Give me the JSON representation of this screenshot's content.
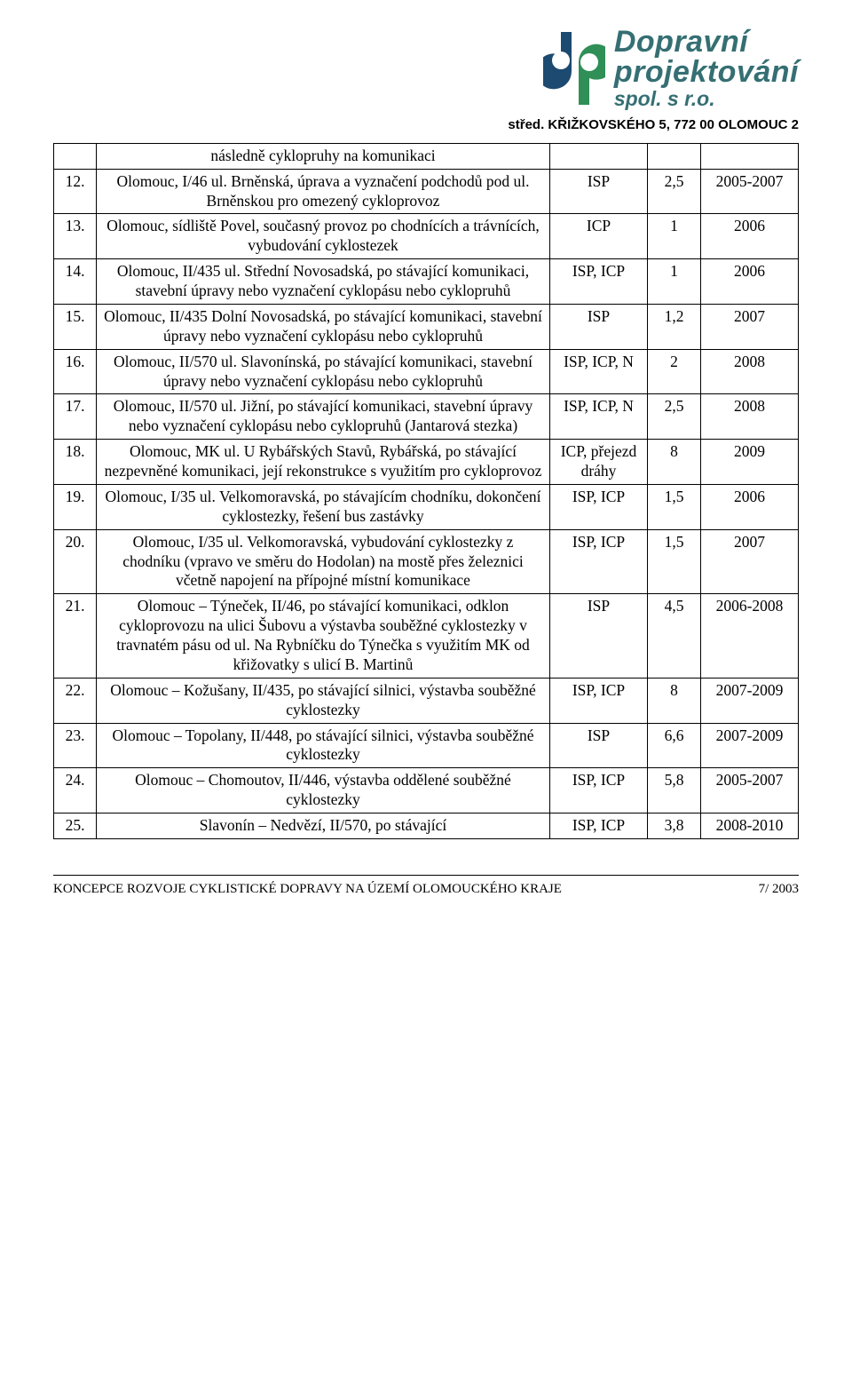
{
  "logo": {
    "line1": "Dopravní",
    "line2": "projektování",
    "line3": "spol. s r.o.",
    "colors": {
      "text": "#356f73",
      "d_fill": "#1d4a70",
      "p_fill": "#2f8f57"
    }
  },
  "address": "střed. KŘIŽKOVSKÉHO 5, 772 00 OLOMOUC 2",
  "table": {
    "rows": [
      {
        "num": "",
        "desc": "následně cyklopruhy na komunikaci",
        "c3": "",
        "c4": "",
        "c5": ""
      },
      {
        "num": "12.",
        "desc": "Olomouc, I/46 ul. Brněnská, úprava a vyznačení podchodů pod ul. Brněnskou pro omezený cykloprovoz",
        "c3": "ISP",
        "c4": "2,5",
        "c5": "2005-2007"
      },
      {
        "num": "13.",
        "desc": "Olomouc, sídliště Povel, současný provoz po chodnících a trávnících, vybudování cyklostezek",
        "c3": "ICP",
        "c4": "1",
        "c5": "2006"
      },
      {
        "num": "14.",
        "desc": "Olomouc, II/435 ul. Střední Novosadská, po stávající komunikaci, stavební úpravy nebo vyznačení cyklopásu nebo cyklopruhů",
        "c3": "ISP, ICP",
        "c4": "1",
        "c5": "2006"
      },
      {
        "num": "15.",
        "desc": "Olomouc, II/435 Dolní Novosadská, po stávající komunikaci, stavební úpravy nebo vyznačení cyklopásu nebo cyklopruhů",
        "c3": "ISP",
        "c4": "1,2",
        "c5": "2007"
      },
      {
        "num": "16.",
        "desc": "Olomouc, II/570 ul. Slavonínská, po stávající komunikaci, stavební úpravy nebo vyznačení cyklopásu nebo cyklopruhů",
        "c3": "ISP, ICP, N",
        "c4": "2",
        "c5": "2008"
      },
      {
        "num": "17.",
        "desc": "Olomouc, II/570 ul. Jižní, po stávající komunikaci, stavební úpravy nebo vyznačení cyklopásu nebo cyklopruhů (Jantarová stezka)",
        "c3": "ISP, ICP, N",
        "c4": "2,5",
        "c5": "2008"
      },
      {
        "num": "18.",
        "desc": "Olomouc, MK ul. U Rybářských Stavů, Rybářská, po stávající nezpevněné komunikaci, její rekonstrukce s využitím pro cykloprovoz",
        "c3": "ICP, přejezd dráhy",
        "c4": "8",
        "c5": "2009"
      },
      {
        "num": "19.",
        "desc": "Olomouc, I/35 ul. Velkomoravská, po stávajícím chodníku, dokončení cyklostezky, řešení bus zastávky",
        "c3": "ISP, ICP",
        "c4": "1,5",
        "c5": "2006"
      },
      {
        "num": "20.",
        "desc": "Olomouc, I/35 ul. Velkomoravská, vybudování cyklostezky z chodníku (vpravo ve směru do Hodolan) na mostě přes železnici včetně napojení na přípojné místní komunikace",
        "c3": "ISP, ICP",
        "c4": "1,5",
        "c5": "2007"
      },
      {
        "num": "21.",
        "desc": "Olomouc – Týneček, II/46, po stávající komunikaci, odklon cykloprovozu na ulici Šubovu a výstavba souběžné cyklostezky v travnatém pásu od ul. Na Rybníčku do Týnečka s využitím MK od křižovatky s ulicí B. Martinů",
        "c3": "ISP",
        "c4": "4,5",
        "c5": "2006-2008"
      },
      {
        "num": "22.",
        "desc": "Olomouc – Kožušany, II/435, po stávající silnici, výstavba souběžné cyklostezky",
        "c3": "ISP, ICP",
        "c4": "8",
        "c5": "2007-2009"
      },
      {
        "num": "23.",
        "desc": "Olomouc – Topolany, II/448, po stávající silnici, výstavba souběžné cyklostezky",
        "c3": "ISP",
        "c4": "6,6",
        "c5": "2007-2009"
      },
      {
        "num": "24.",
        "desc": "Olomouc – Chomoutov, II/446, výstavba oddělené souběžné cyklostezky",
        "c3": "ISP, ICP",
        "c4": "5,8",
        "c5": "2005-2007"
      },
      {
        "num": "25.",
        "desc": "Slavonín – Nedvězí, II/570, po stávající",
        "c3": "ISP, ICP",
        "c4": "3,8",
        "c5": "2008-2010"
      }
    ]
  },
  "footer": {
    "left": "KONCEPCE ROZVOJE CYKLISTICKÉ DOPRAVY NA ÚZEMÍ OLOMOUCKÉHO KRAJE",
    "right": "7/ 2003"
  },
  "style": {
    "body_font": "Times New Roman",
    "body_fontsize_pt": 13,
    "header_font": "Arial",
    "border_color": "#000000",
    "background": "#ffffff"
  }
}
